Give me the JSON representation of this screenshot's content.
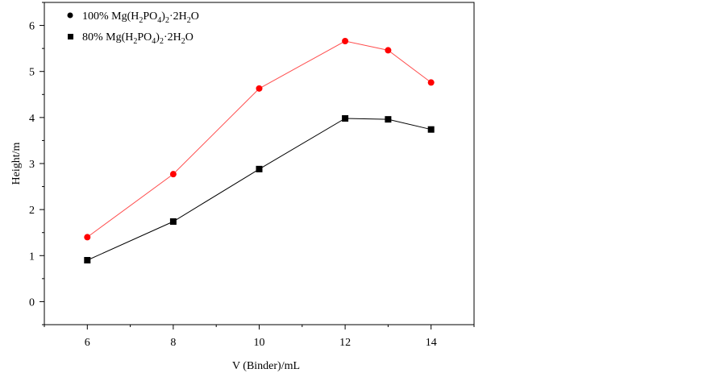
{
  "chart_data": {
    "type": "line",
    "xlabel": "V (Binder)/mL",
    "ylabel": "Height/m",
    "xlim": [
      5,
      15
    ],
    "ylim": [
      -0.5,
      6.5
    ],
    "xticks": [
      6,
      8,
      10,
      12,
      14
    ],
    "yticks": [
      0,
      1,
      2,
      3,
      4,
      5,
      6
    ],
    "grid": false,
    "legend_position": "top-left",
    "series": [
      {
        "name": "100% Mg(H2PO4)2·2H2O",
        "marker": "circle",
        "color": "#ff0000",
        "line_color": "#ff4d4d",
        "x": [
          6,
          8,
          10,
          12,
          13,
          14
        ],
        "y": [
          1.4,
          2.77,
          4.63,
          5.66,
          5.46,
          4.76
        ]
      },
      {
        "name": "80% Mg(H2PO4)2·2H2O",
        "marker": "square",
        "color": "#000000",
        "line_color": "#000000",
        "x": [
          6,
          8,
          10,
          12,
          13,
          14
        ],
        "y": [
          0.9,
          1.74,
          2.88,
          3.98,
          3.96,
          3.74
        ]
      }
    ]
  }
}
